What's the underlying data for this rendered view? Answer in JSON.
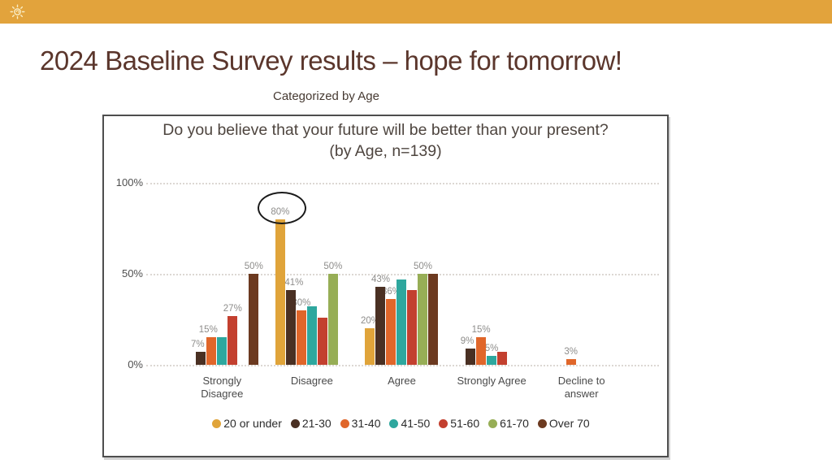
{
  "top_bar": {
    "color": "#E2A33C",
    "icon": "sun-logo"
  },
  "slide": {
    "title": "2024 Baseline Survey results – hope for tomorrow!",
    "subtitle": "Categorized by Age",
    "title_color": "#5B362C"
  },
  "chart_data": {
    "type": "bar",
    "title": "Do you believe that your future will be better than your present? (by Age, n=139)",
    "title_lines": [
      "Do you believe that your future will be better than your present?",
      "(by Age, n=139)"
    ],
    "n": 139,
    "categories": [
      "Strongly\nDisagree",
      "Disagree",
      "Agree",
      "Strongly Agree",
      "Decline to\nanswer"
    ],
    "y_axis": {
      "ticks": [
        {
          "label": "100%",
          "value": 100
        },
        {
          "label": "50%",
          "value": 50
        },
        {
          "label": "0%",
          "value": 0
        }
      ],
      "ylim": [
        0,
        100
      ],
      "grid": "dotted"
    },
    "legend_position": "bottom",
    "series": [
      {
        "name": "20 or under",
        "color": "#E0A43A",
        "values": [
          0,
          80,
          20,
          0,
          0
        ],
        "labels": [
          "",
          "80%",
          "20%",
          "",
          ""
        ]
      },
      {
        "name": "21-30",
        "color": "#4A3023",
        "values": [
          7,
          41,
          43,
          9,
          0
        ],
        "labels": [
          {
            "t": "7%",
            "dx": -4
          },
          {
            "t": "41%",
            "dx": 4
          },
          "43%",
          {
            "t": "9%",
            "dx": -4
          },
          ""
        ]
      },
      {
        "name": "31-40",
        "color": "#E0662A",
        "values": [
          15,
          30,
          36,
          15,
          3
        ],
        "labels": [
          {
            "t": "15%",
            "dx": -4
          },
          "30%",
          "36%",
          "15%",
          "3%"
        ]
      },
      {
        "name": "41-50",
        "color": "#2EA79E",
        "values": [
          15,
          32,
          47,
          5,
          0
        ],
        "labels": [
          "",
          "",
          "",
          "5%",
          ""
        ]
      },
      {
        "name": "51-60",
        "color": "#C3402F",
        "values": [
          27,
          26,
          41,
          7,
          0
        ],
        "labels": [
          "27%",
          "",
          "",
          "",
          ""
        ]
      },
      {
        "name": "61-70",
        "color": "#97AE56",
        "values": [
          0,
          50,
          50,
          0,
          0
        ],
        "labels": [
          "",
          "50%",
          "50%",
          "",
          ""
        ]
      },
      {
        "name": "Over 70",
        "color": "#6C3A20",
        "values": [
          50,
          0,
          50,
          0,
          0
        ],
        "labels": [
          "50%",
          "",
          "",
          "",
          ""
        ]
      }
    ],
    "annotation": {
      "shape": "ellipse",
      "series_index": 0,
      "category_index": 1,
      "label_circled": "80%"
    }
  }
}
